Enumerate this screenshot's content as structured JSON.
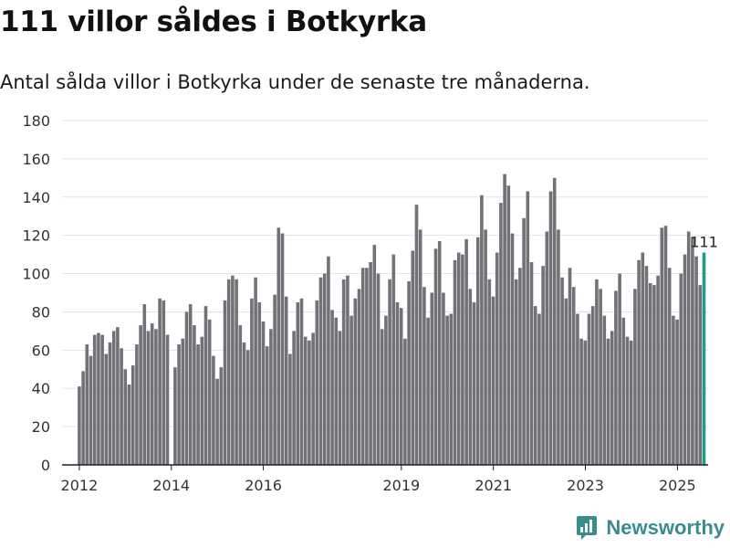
{
  "header": {
    "title": "111 villor såldes i Botkyrka",
    "subtitle": "Antal sålda villor i Botkyrka under de senaste tre månaderna."
  },
  "brand": {
    "name": "Newsworthy"
  },
  "colors": {
    "bar": "#727177",
    "highlight": "#1f9c8d",
    "grid": "#e3e3e3",
    "axis": "#222222",
    "brand": "#3a8c8f"
  },
  "chart_data": {
    "type": "bar",
    "title": "111 villor såldes i Botkyrka",
    "xlabel": "",
    "ylabel": "",
    "ylim": [
      0,
      180
    ],
    "yticks": [
      0,
      20,
      40,
      60,
      80,
      100,
      120,
      140,
      160,
      180
    ],
    "x_start": 2012.0,
    "x_step": 0.0833,
    "xlim": [
      2011.625,
      2025.667
    ],
    "xticks": [
      2012,
      2014,
      2016,
      2019,
      2021,
      2023,
      2025
    ],
    "values": [
      41,
      49,
      63,
      57,
      68,
      69,
      68,
      58,
      64,
      70,
      72,
      61,
      50,
      42,
      52,
      63,
      73,
      84,
      70,
      74,
      71,
      87,
      86,
      68,
      null,
      51,
      63,
      66,
      80,
      84,
      73,
      63,
      67,
      83,
      76,
      57,
      45,
      51,
      86,
      97,
      99,
      97,
      73,
      64,
      60,
      87,
      98,
      85,
      75,
      62,
      71,
      89,
      124,
      121,
      88,
      58,
      70,
      85,
      87,
      67,
      65,
      69,
      86,
      98,
      100,
      109,
      81,
      77,
      70,
      97,
      99,
      78,
      87,
      92,
      103,
      103,
      106,
      115,
      100,
      71,
      78,
      97,
      110,
      85,
      82,
      66,
      96,
      112,
      136,
      123,
      93,
      77,
      90,
      113,
      117,
      90,
      78,
      79,
      107,
      111,
      110,
      118,
      92,
      85,
      119,
      141,
      123,
      97,
      88,
      111,
      137,
      152,
      146,
      121,
      97,
      103,
      129,
      143,
      106,
      83,
      79,
      104,
      122,
      143,
      150,
      123,
      98,
      87,
      103,
      93,
      79,
      66,
      65,
      79,
      83,
      97,
      92,
      78,
      66,
      70,
      91,
      100,
      77,
      67,
      65,
      92,
      107,
      111,
      104,
      95,
      94,
      99,
      124,
      125,
      103,
      78,
      76,
      100,
      110,
      122,
      119,
      109,
      94,
      111
    ],
    "highlight": {
      "label": "111",
      "value": 111
    }
  }
}
